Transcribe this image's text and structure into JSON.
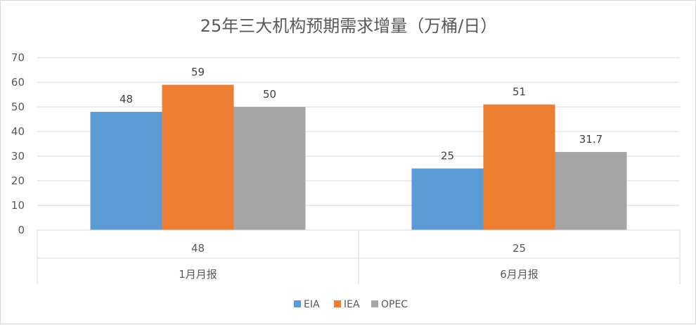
{
  "chart_data": {
    "type": "bar",
    "title": "25年三大机构预期需求增量（万桶/日）",
    "categories": [
      {
        "value_label": "48",
        "group_label": "1月月报"
      },
      {
        "value_label": "25",
        "group_label": "6月月报"
      }
    ],
    "series": [
      {
        "name": "EIA",
        "color": "#5b9bd5",
        "values": [
          48,
          25
        ],
        "labels": [
          "48",
          "25"
        ]
      },
      {
        "name": "IEA",
        "color": "#ed7d31",
        "values": [
          59,
          51
        ],
        "labels": [
          "59",
          "51"
        ]
      },
      {
        "name": "OPEC",
        "color": "#a5a5a5",
        "values": [
          50,
          31.7
        ],
        "labels": [
          "50",
          "31.7"
        ]
      }
    ],
    "y_ticks": [
      "0",
      "10",
      "20",
      "30",
      "40",
      "50",
      "60",
      "70"
    ],
    "ylim": [
      0,
      70
    ],
    "grid": true,
    "legend_position": "bottom"
  }
}
